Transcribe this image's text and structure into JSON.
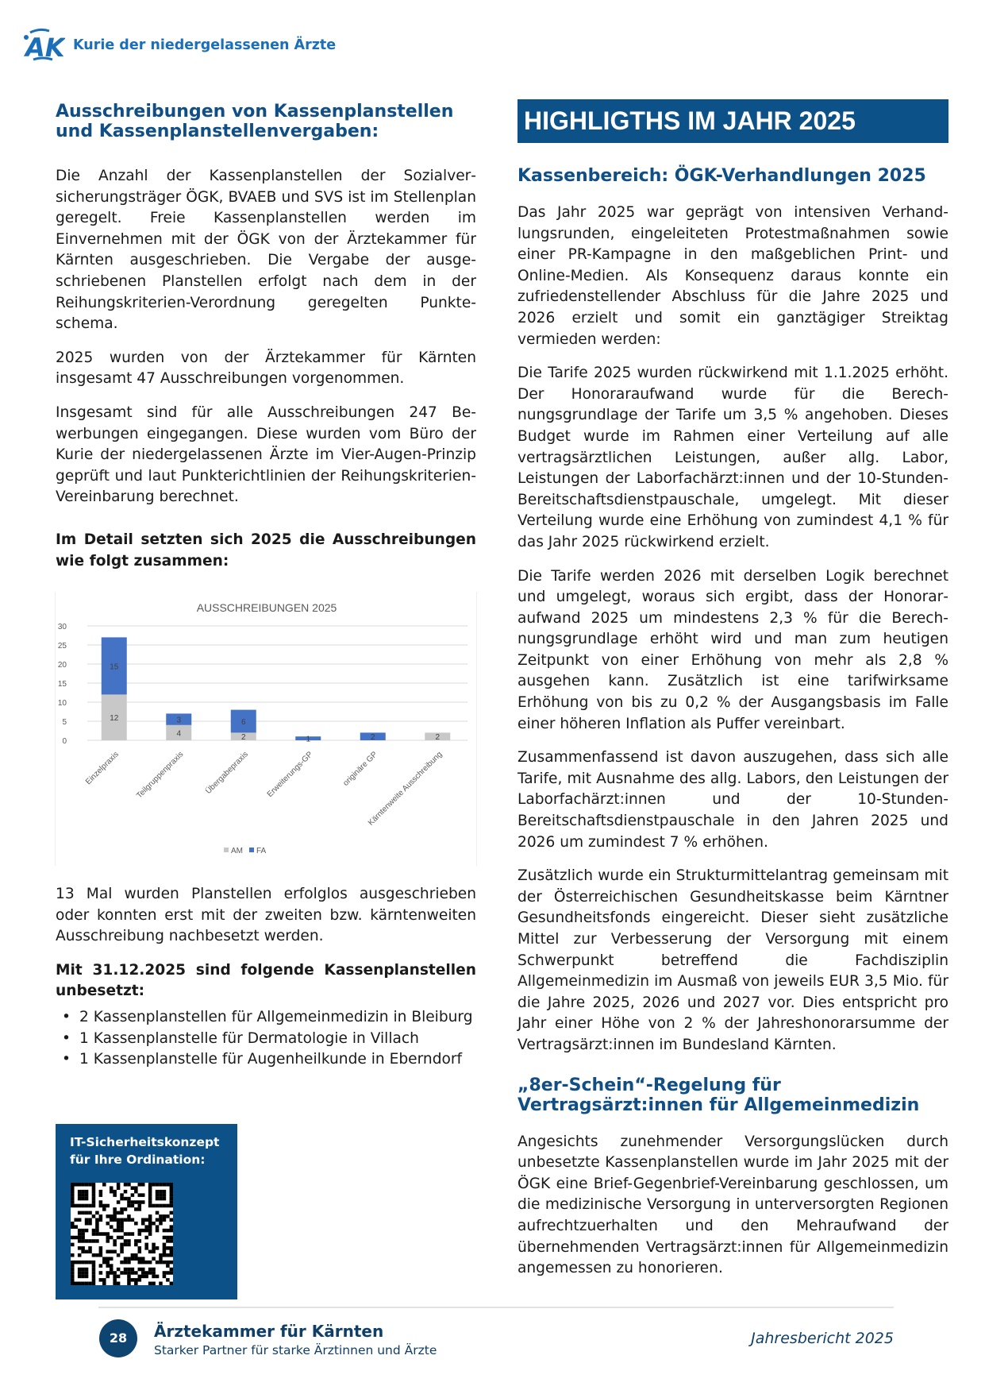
{
  "header": {
    "logo_text": "ÄK",
    "org": "Kurie der niedergelassenen Ärzte"
  },
  "left": {
    "heading": "Ausschreibungen von Kassenplanstellen und Kassenplanstellenvergaben:",
    "p1": "Die Anzahl der Kassenplanstellen der Sozialver­sicherungsträger ÖGK, BVAEB und SVS ist im Stellen­plan geregelt. Freie Kassenplanstellen werden im Einvernehmen mit der ÖGK von der Ärztekammer für Kärnten ausgeschrieben. Die Vergabe der ausge­schriebenen Planstellen erfolgt nach dem in der Reihungskriterien-Verordnung geregelten Punkte­schema.",
    "p2": "2025 wurden von der Ärztekammer für Kärnten insgesamt 47 Ausschreibungen vorgenommen.",
    "p3": "Insgesamt sind für alle Ausschreibungen 247 Be­werbungen eingegangen. Diese wurden vom Büro der Kurie der niedergelassenen Ärzte im Vier-Augen-Prinzip geprüft und laut Punkterichtlinien der Reihungskriterien-Vereinbarung berechnet.",
    "detail_heading": "Im Detail setzten sich 2025 die Ausschreibungen wie folgt zusammen:",
    "p4": "13 Mal wurden Planstellen erfolglos ausgeschrieben oder konnten erst mit der zweiten bzw. kärntenweiten Ausschreibung nachbesetzt werden.",
    "vacant_heading": "Mit 31.12.2025 sind folgende Kassenplanstellen unbesetzt:",
    "vacant": [
      "2 Kassenplanstellen für Allgemeinmedizin in Bleiburg",
      "1 Kassenplanstelle für Dermatologie in Villach",
      "1 Kassenplanstelle für Augenheilkunde in Eberndorf"
    ],
    "qr_title": "IT-Sicherheitskonzept für Ihre Ordination:"
  },
  "chart_data": {
    "type": "bar",
    "stacked": true,
    "title": "AUSSCHREIBUNGEN 2025",
    "categories": [
      "Einzelpraxis",
      "Teilgruppenpraxis",
      "Übergabepraxis",
      "Erweiterungs-GP",
      "originäre GP",
      "Kärntenweite Ausschreibung"
    ],
    "series": [
      {
        "name": "AM",
        "values": [
          12,
          4,
          2,
          0,
          0,
          2
        ],
        "color": "#c8c8c8"
      },
      {
        "name": "FA",
        "values": [
          15,
          3,
          6,
          1,
          2,
          0
        ],
        "color": "#4472c4"
      }
    ],
    "ylim": [
      0,
      30
    ],
    "yticks": [
      0,
      5,
      10,
      15,
      20,
      25,
      30
    ],
    "grid": true,
    "legend": "bottom"
  },
  "right": {
    "banner": "HIGHLIGTHS IM JAHR 2025",
    "heading1": "Kassenbereich: ÖGK-Verhandlungen 2025",
    "p1": "Das Jahr 2025 war geprägt von intensiven Verhand­lungsrunden, eingeleiteten Protestmaßnahmen sowie einer PR-Kampagne in den maßgeblichen Print- und Online-Medien. Als Konsequenz daraus konnte ein zufriedenstellender Abschluss für die Jahre 2025 und 2026 erzielt und somit ein ganztägiger Streiktag vermieden werden:",
    "p2": "Die Tarife 2025 wurden rückwirkend mit 1.1.2025 erhöht. Der Honoraraufwand wurde für die Berech­nungsgrundlage der Tarife um 3,5 % angehoben. Dieses Budget wurde im Rahmen einer Verteilung auf alle vertragsärztlichen Leistungen, außer allg. Labor, Leistungen der Laborfachärzt:innen und der 10-Stunden-Bereitschaftsdienstpauschale, umgelegt. Mit dieser Verteilung wurde eine Erhöhung von zumindest 4,1 % für das Jahr 2025 rückwirkend erzielt.",
    "p3": "Die Tarife werden 2026 mit derselben Logik berechnet und umgelegt, woraus sich ergibt, dass der Honorar­aufwand 2025 um mindestens 2,3 % für die Berech­nungsgrundlage erhöht wird und man zum heutigen Zeitpunkt von einer Erhöhung von mehr als 2,8 % ausgehen kann. Zusätzlich ist eine tarifwirksame Erhöhung von bis zu 0,2 % der Ausgangsbasis im Falle einer höheren Inflation als Puffer vereinbart.",
    "p4": "Zusammenfassend ist davon auszugehen, dass sich alle Tarife, mit Ausnahme des allg. Labors, den Leistungen der Laborfachärzt:innen und der 10-Stunden-Bereitschaftsdienstpauschale in den Jahren 2025 und 2026 um zumindest 7 % erhöhen.",
    "p5": "Zusätzlich wurde ein Strukturmittelantrag gemeinsam mit der Österreichischen Gesundheitskasse beim Kärntner Gesundheitsfonds eingereicht. Dieser sieht zusätzliche Mittel zur Verbesserung der Versorgung mit einem Schwerpunkt betreffend die Fachdisziplin Allgemeinmedizin im Ausmaß von jeweils EUR 3,5 Mio. für die Jahre 2025, 2026 und 2027 vor. Dies entspricht pro Jahr einer Höhe von 2 % der Jahreshonorarsumme der Vertragsärzt:innen im Bundesland Kärnten.",
    "heading2": "„8er-Schein“-Regelung für Vertragsärzt:innen für Allgemeinmedizin",
    "p6": "Angesichts zunehmender Versorgungslücken durch unbesetzte Kassenplanstellen wurde im Jahr 2025 mit der ÖGK eine Brief-Gegenbrief-Vereinbarung ge­schlossen, um die medizinische Versorgung in unter­versorgten Regionen aufrechtzuerhalten und den Mehraufwand der übernehmenden Vertragsärzt:innen für Allgemeinmedizin angemessen zu honorieren."
  },
  "footer": {
    "page": "28",
    "title": "Ärztekammer für Kärnten",
    "subtitle": "Starker Partner für starke Ärztinnen und Ärzte",
    "report": "Jahresbericht 2025"
  }
}
